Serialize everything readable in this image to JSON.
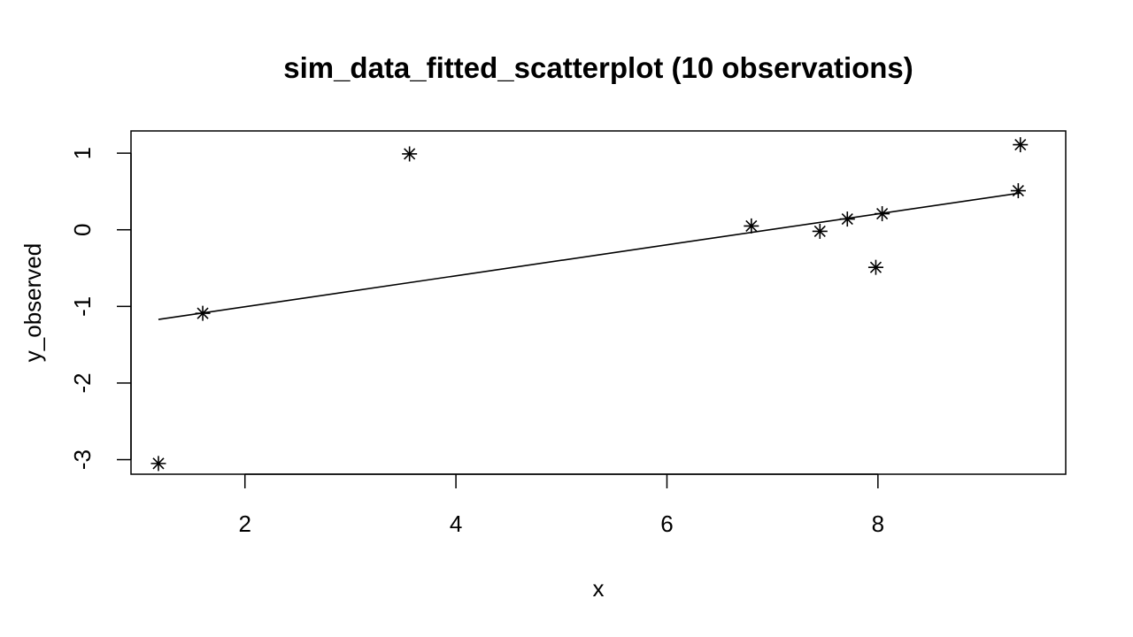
{
  "chart_data": {
    "type": "scatter",
    "title": "sim_data_fitted_scatterplot (10 observations)",
    "xlabel": "x",
    "ylabel": "y_observed",
    "xlim": [
      0.92,
      9.78
    ],
    "ylim": [
      -3.19,
      1.29
    ],
    "x_ticks": [
      2,
      4,
      6,
      8
    ],
    "y_ticks": [
      -3,
      -2,
      -1,
      0,
      1
    ],
    "x_tick_labels": [
      "2",
      "4",
      "6",
      "8"
    ],
    "y_tick_labels": [
      "-3",
      "-2",
      "-1",
      "0",
      "1"
    ],
    "grid": false,
    "legend": "none",
    "marker": "asterisk",
    "colors": {
      "points": "#000000",
      "fit_line": "#000000",
      "frame": "#000000"
    },
    "series": [
      {
        "values": [
          {
            "x": 1.18,
            "y": -3.05
          },
          {
            "x": 1.6,
            "y": -1.09
          },
          {
            "x": 3.56,
            "y": 0.99
          },
          {
            "x": 6.8,
            "y": 0.05
          },
          {
            "x": 7.45,
            "y": -0.02
          },
          {
            "x": 7.71,
            "y": 0.14
          },
          {
            "x": 7.98,
            "y": -0.49
          },
          {
            "x": 8.04,
            "y": 0.21
          },
          {
            "x": 9.33,
            "y": 0.51
          },
          {
            "x": 9.35,
            "y": 1.11
          }
        ]
      }
    ],
    "fit_line": {
      "x": [
        1.18,
        9.35
      ],
      "y": [
        -1.17,
        0.48
      ]
    }
  }
}
